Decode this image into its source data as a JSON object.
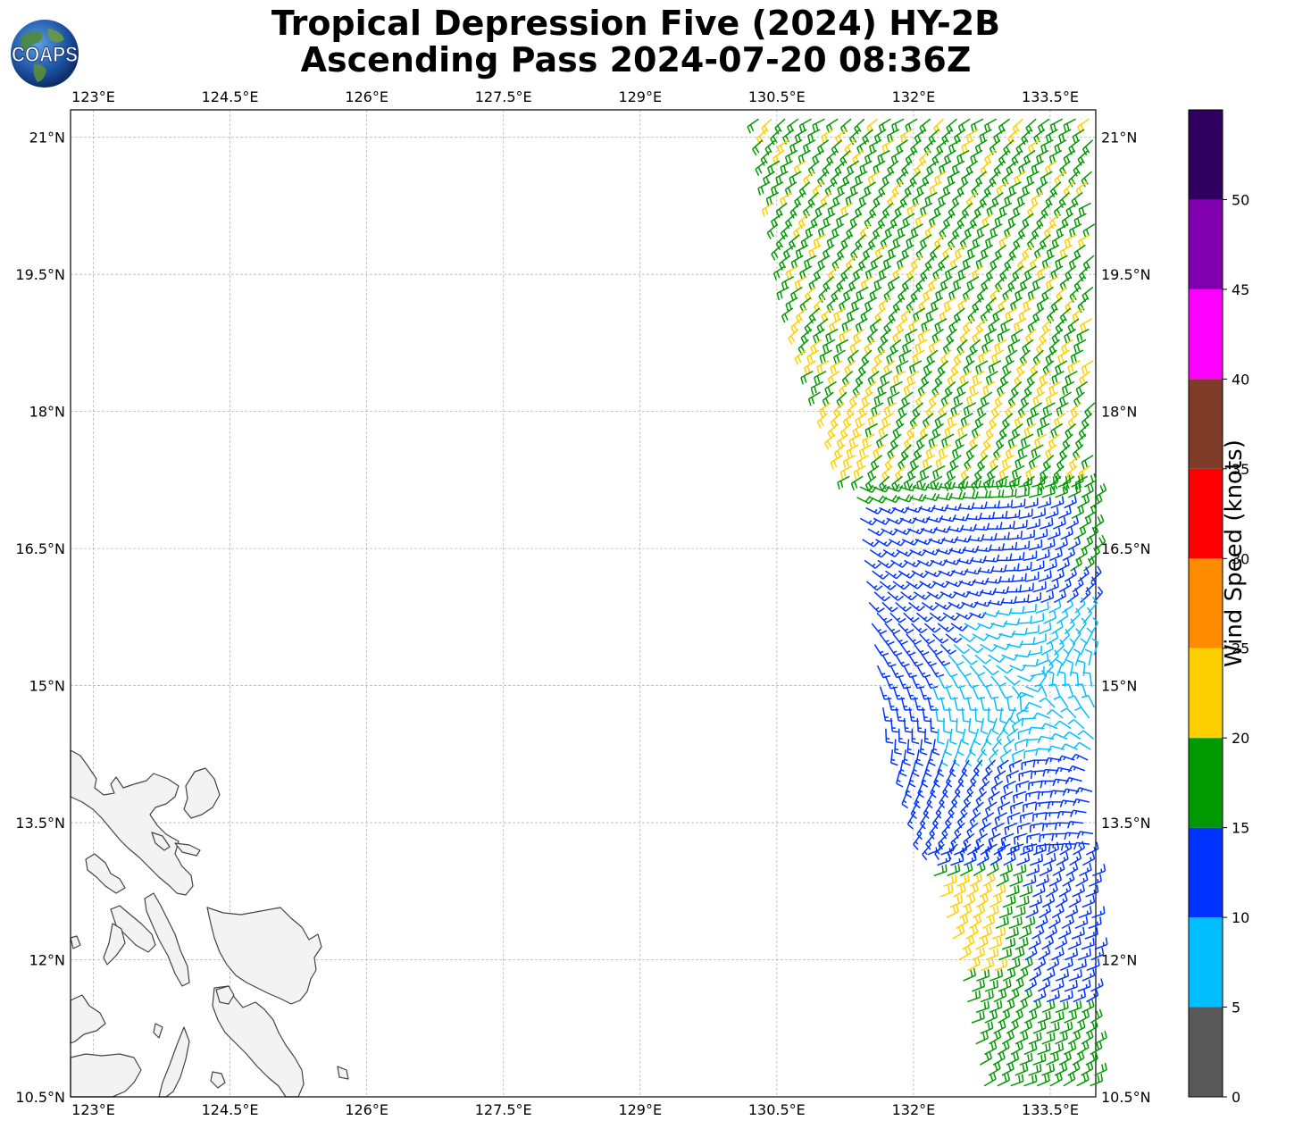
{
  "title": {
    "line1": "Tropical Depression Five (2024) HY-2B",
    "line2": "Ascending Pass 2024-07-20 08:36Z"
  },
  "logo": {
    "text": "COAPS",
    "icon": "globe-icon"
  },
  "map": {
    "lon_range": [
      122.75,
      134.0
    ],
    "lat_range": [
      10.5,
      21.3
    ],
    "lon_ticks": [
      "123°E",
      "124.5°E",
      "126°E",
      "127.5°E",
      "129°E",
      "130.5°E",
      "132°E",
      "133.5°E"
    ],
    "lon_tick_values": [
      123,
      124.5,
      126,
      127.5,
      129,
      130.5,
      132,
      133.5
    ],
    "lat_ticks": [
      "10.5°N",
      "12°N",
      "13.5°N",
      "15°N",
      "16.5°N",
      "18°N",
      "19.5°N",
      "21°N"
    ],
    "lat_tick_values": [
      10.5,
      12,
      13.5,
      15,
      16.5,
      18,
      19.5,
      21
    ],
    "grid": true,
    "land_color": "#f3f3f3",
    "coast_color": "#444444"
  },
  "colorbar": {
    "label": "Wind Speed (knots)",
    "ticks": [
      "0",
      "5",
      "10",
      "15",
      "20",
      "25",
      "30",
      "35",
      "40",
      "45",
      "50"
    ],
    "bins": [
      {
        "range": [
          0,
          5
        ],
        "color": "#585858"
      },
      {
        "range": [
          5,
          10
        ],
        "color": "#00bfff"
      },
      {
        "range": [
          10,
          15
        ],
        "color": "#0033ff"
      },
      {
        "range": [
          15,
          20
        ],
        "color": "#009900"
      },
      {
        "range": [
          20,
          25
        ],
        "color": "#ffd000"
      },
      {
        "range": [
          25,
          30
        ],
        "color": "#ff8c00"
      },
      {
        "range": [
          30,
          35
        ],
        "color": "#ff0000"
      },
      {
        "range": [
          35,
          40
        ],
        "color": "#7f3c28"
      },
      {
        "range": [
          40,
          45
        ],
        "color": "#ff00ff"
      },
      {
        "range": [
          45,
          50
        ],
        "color": "#8000b0"
      },
      {
        "range": [
          50,
          55
        ],
        "color": "#300060"
      }
    ]
  },
  "wind_field": {
    "type": "barbs",
    "swath_west_edge": [
      [
        21.2,
        130.3
      ],
      [
        19.0,
        130.7
      ],
      [
        17.0,
        131.4
      ],
      [
        16.0,
        131.5
      ],
      [
        14.5,
        131.7
      ],
      [
        13.5,
        132.05
      ],
      [
        12.0,
        132.5
      ],
      [
        10.5,
        132.8
      ]
    ],
    "swath_east_lon": 134.0,
    "circulation_center": [
      14.9,
      133.3
    ],
    "speed_regions": [
      {
        "lat": [
          10.5,
          13.0
        ],
        "speed_kt": "15-20",
        "color": "#009900"
      },
      {
        "lat": [
          13.0,
          17.0
        ],
        "speed_kt": "10-15",
        "color": "#0033ff"
      },
      {
        "lat": [
          14.3,
          15.6
        ],
        "speed_kt": "5-10",
        "color": "#00bfff"
      },
      {
        "lat": [
          17.0,
          21.3
        ],
        "speed_kt": "15-25",
        "color": "#009900 / #ffd000"
      }
    ]
  }
}
